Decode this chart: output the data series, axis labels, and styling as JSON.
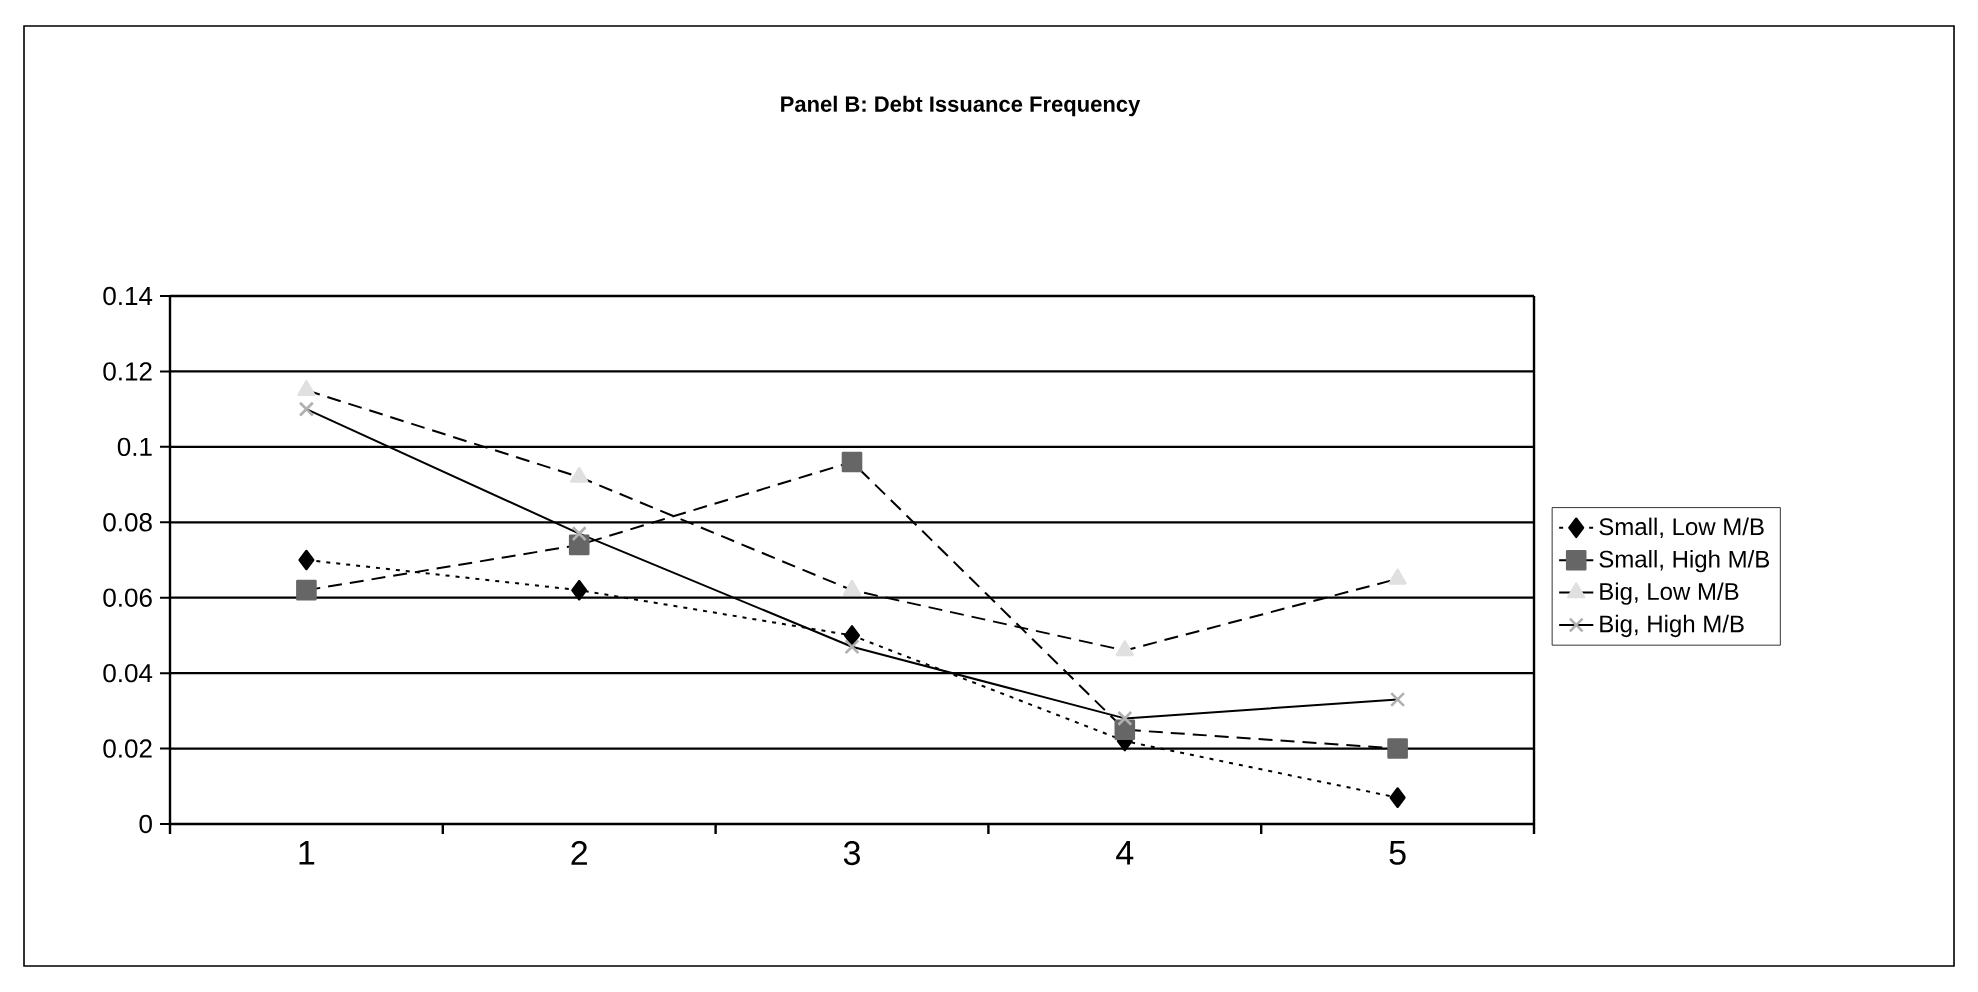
{
  "chart_data": {
    "type": "line",
    "title": "Panel B: Debt Issuance Frequency",
    "categories": [
      "1",
      "2",
      "3",
      "4",
      "5"
    ],
    "series": [
      {
        "name": "Small, Low M/B",
        "color": "#000000",
        "marker": "diamond",
        "line_style": "dotted",
        "values": [
          0.07,
          0.062,
          0.05,
          0.022,
          0.007
        ]
      },
      {
        "name": "Small, High M/B",
        "color": "#666666",
        "marker": "square",
        "line_style": "dashed",
        "values": [
          0.062,
          0.074,
          0.096,
          0.025,
          0.02
        ]
      },
      {
        "name": "Big, Low M/B",
        "color": "#e0e0e0",
        "marker": "triangle",
        "line_style": "dashed",
        "values": [
          0.115,
          0.092,
          0.062,
          0.046,
          0.065
        ]
      },
      {
        "name": "Big, High M/B",
        "color": "#b0b0b0",
        "marker": "cross",
        "line_style": "solid",
        "values": [
          0.11,
          0.077,
          0.047,
          0.028,
          0.033
        ]
      }
    ],
    "ylim": [
      0,
      0.14
    ],
    "yticks": [
      0,
      0.02,
      0.04,
      0.06,
      0.08,
      0.1,
      0.12,
      0.14
    ],
    "grid": "y",
    "legend": "right"
  }
}
